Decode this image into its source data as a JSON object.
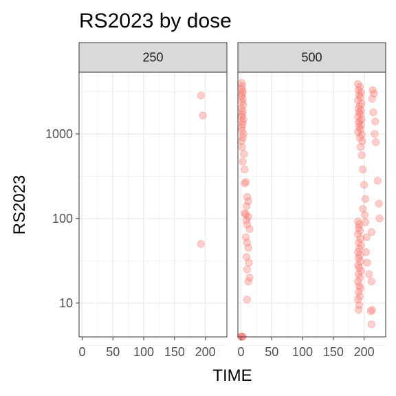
{
  "chart_data": {
    "type": "scatter",
    "title": "RS2023 by dose",
    "xlabel": "TIME",
    "ylabel": "RS2023",
    "y_scale": "log10",
    "xlim": [
      -5,
      235
    ],
    "ylim_log10": [
      0.6,
      3.73
    ],
    "x_ticks": [
      0,
      50,
      100,
      150,
      200
    ],
    "x_tick_labels": [
      "0",
      "50",
      "100",
      "150",
      "200"
    ],
    "y_ticks": [
      10,
      100,
      1000
    ],
    "y_tick_labels": [
      "10",
      "100",
      "1000"
    ],
    "grid": true,
    "point_color": "#F8766D",
    "point_alpha": 0.35,
    "panels": [
      {
        "label": "250",
        "points": [
          {
            "x": 193,
            "y": 2850
          },
          {
            "x": 196,
            "y": 1650
          },
          {
            "x": 193,
            "y": 50
          }
        ]
      },
      {
        "label": "500",
        "points": [
          {
            "x": 1,
            "y": 4000
          },
          {
            "x": 2,
            "y": 3700
          },
          {
            "x": 1,
            "y": 3400
          },
          {
            "x": 3,
            "y": 3200
          },
          {
            "x": 2,
            "y": 3000
          },
          {
            "x": 1,
            "y": 2800
          },
          {
            "x": 3,
            "y": 2600
          },
          {
            "x": 2,
            "y": 2400
          },
          {
            "x": 4,
            "y": 2200
          },
          {
            "x": 1,
            "y": 2000
          },
          {
            "x": 3,
            "y": 1850
          },
          {
            "x": 2,
            "y": 1700
          },
          {
            "x": 1,
            "y": 1600
          },
          {
            "x": 4,
            "y": 1500
          },
          {
            "x": 2,
            "y": 1400
          },
          {
            "x": 3,
            "y": 1300
          },
          {
            "x": 1,
            "y": 1200
          },
          {
            "x": 2,
            "y": 1100
          },
          {
            "x": 4,
            "y": 1000
          },
          {
            "x": 3,
            "y": 900
          },
          {
            "x": 1,
            "y": 820
          },
          {
            "x": 2,
            "y": 700
          },
          {
            "x": 5,
            "y": 580
          },
          {
            "x": 3,
            "y": 470
          },
          {
            "x": 6,
            "y": 380
          },
          {
            "x": 8,
            "y": 270
          },
          {
            "x": 6,
            "y": 260
          },
          {
            "x": 10,
            "y": 180
          },
          {
            "x": 12,
            "y": 160
          },
          {
            "x": 9,
            "y": 140
          },
          {
            "x": 6,
            "y": 115
          },
          {
            "x": 8,
            "y": 112
          },
          {
            "x": 12,
            "y": 105
          },
          {
            "x": 9,
            "y": 95
          },
          {
            "x": 10,
            "y": 85
          },
          {
            "x": 14,
            "y": 75
          },
          {
            "x": 8,
            "y": 60
          },
          {
            "x": 10,
            "y": 52
          },
          {
            "x": 12,
            "y": 45
          },
          {
            "x": 9,
            "y": 35
          },
          {
            "x": 13,
            "y": 30
          },
          {
            "x": 10,
            "y": 25
          },
          {
            "x": 14,
            "y": 20
          },
          {
            "x": 12,
            "y": 18
          },
          {
            "x": 10,
            "y": 11
          },
          {
            "x": 0,
            "y": 4
          },
          {
            "x": 1,
            "y": 4
          },
          {
            "x": 2,
            "y": 4
          },
          {
            "x": 3,
            "y": 4
          },
          {
            "x": 190,
            "y": 3900
          },
          {
            "x": 193,
            "y": 3600
          },
          {
            "x": 191,
            "y": 3300
          },
          {
            "x": 195,
            "y": 3100
          },
          {
            "x": 192,
            "y": 2900
          },
          {
            "x": 194,
            "y": 2700
          },
          {
            "x": 190,
            "y": 2500
          },
          {
            "x": 196,
            "y": 2300
          },
          {
            "x": 193,
            "y": 2150
          },
          {
            "x": 191,
            "y": 2000
          },
          {
            "x": 195,
            "y": 1900
          },
          {
            "x": 192,
            "y": 1800
          },
          {
            "x": 194,
            "y": 1700
          },
          {
            "x": 190,
            "y": 1600
          },
          {
            "x": 196,
            "y": 1500
          },
          {
            "x": 193,
            "y": 1420
          },
          {
            "x": 191,
            "y": 1350
          },
          {
            "x": 195,
            "y": 1280
          },
          {
            "x": 192,
            "y": 1200
          },
          {
            "x": 194,
            "y": 1120
          },
          {
            "x": 190,
            "y": 1050
          },
          {
            "x": 196,
            "y": 980
          },
          {
            "x": 193,
            "y": 900
          },
          {
            "x": 197,
            "y": 820
          },
          {
            "x": 194,
            "y": 700
          },
          {
            "x": 196,
            "y": 560
          },
          {
            "x": 198,
            "y": 380
          },
          {
            "x": 200,
            "y": 250
          },
          {
            "x": 202,
            "y": 170
          },
          {
            "x": 198,
            "y": 130
          },
          {
            "x": 201,
            "y": 110
          },
          {
            "x": 214,
            "y": 3300
          },
          {
            "x": 216,
            "y": 3000
          },
          {
            "x": 213,
            "y": 2600
          },
          {
            "x": 215,
            "y": 1800
          },
          {
            "x": 218,
            "y": 1400
          },
          {
            "x": 217,
            "y": 1000
          },
          {
            "x": 219,
            "y": 800
          },
          {
            "x": 222,
            "y": 280
          },
          {
            "x": 224,
            "y": 150
          },
          {
            "x": 225,
            "y": 100
          },
          {
            "x": 212,
            "y": 69
          },
          {
            "x": 190,
            "y": 92
          },
          {
            "x": 192,
            "y": 85
          },
          {
            "x": 191,
            "y": 78
          },
          {
            "x": 193,
            "y": 72
          },
          {
            "x": 190,
            "y": 65
          },
          {
            "x": 194,
            "y": 58
          },
          {
            "x": 191,
            "y": 52
          },
          {
            "x": 195,
            "y": 48
          },
          {
            "x": 192,
            "y": 44
          },
          {
            "x": 190,
            "y": 40
          },
          {
            "x": 193,
            "y": 37
          },
          {
            "x": 191,
            "y": 34
          },
          {
            "x": 194,
            "y": 31
          },
          {
            "x": 190,
            "y": 28
          },
          {
            "x": 192,
            "y": 26
          },
          {
            "x": 195,
            "y": 24
          },
          {
            "x": 191,
            "y": 22
          },
          {
            "x": 193,
            "y": 20
          },
          {
            "x": 190,
            "y": 18
          },
          {
            "x": 192,
            "y": 16
          },
          {
            "x": 194,
            "y": 15
          },
          {
            "x": 191,
            "y": 13.5
          },
          {
            "x": 193,
            "y": 12
          },
          {
            "x": 190,
            "y": 11
          },
          {
            "x": 192,
            "y": 9.5
          },
          {
            "x": 191,
            "y": 8.3
          },
          {
            "x": 202,
            "y": 90
          },
          {
            "x": 204,
            "y": 60
          },
          {
            "x": 203,
            "y": 40
          },
          {
            "x": 205,
            "y": 30
          },
          {
            "x": 208,
            "y": 22
          },
          {
            "x": 212,
            "y": 18
          },
          {
            "x": 213,
            "y": 8.3
          },
          {
            "x": 211,
            "y": 8
          },
          {
            "x": 212,
            "y": 5.6
          }
        ]
      }
    ]
  }
}
